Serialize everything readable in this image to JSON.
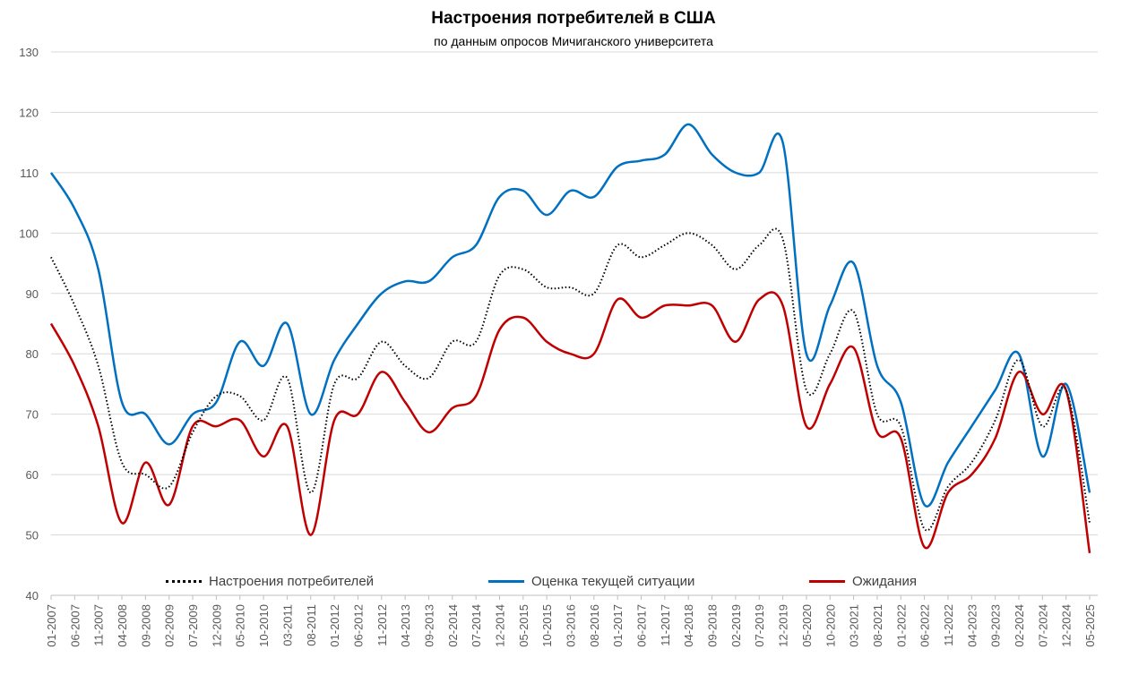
{
  "chart_data": {
    "type": "line",
    "title": "Настроения потребителей в США",
    "subtitle": "по данным опросов Мичиганского университета",
    "xlabel": "",
    "ylabel": "",
    "ylim": [
      40,
      130
    ],
    "yticks": [
      40,
      50,
      60,
      70,
      80,
      90,
      100,
      110,
      120,
      130
    ],
    "grid": true,
    "legend_position": "bottom-inside",
    "x": [
      "01-2007",
      "06-2007",
      "11-2007",
      "04-2008",
      "09-2008",
      "02-2009",
      "07-2009",
      "12-2009",
      "05-2010",
      "10-2010",
      "03-2011",
      "08-2011",
      "01-2012",
      "06-2012",
      "11-2012",
      "04-2013",
      "09-2013",
      "02-2014",
      "07-2014",
      "12-2014",
      "05-2015",
      "10-2015",
      "03-2016",
      "08-2016",
      "01-2017",
      "06-2017",
      "11-2017",
      "04-2018",
      "09-2018",
      "02-2019",
      "07-2019",
      "12-2019",
      "05-2020",
      "10-2020",
      "03-2021",
      "08-2021",
      "01-2022",
      "06-2022",
      "11-2022",
      "04-2023",
      "09-2023",
      "02-2024",
      "07-2024",
      "12-2024",
      "05-2025"
    ],
    "series": [
      {
        "name": "Настроения потребителей",
        "color": "#000000",
        "style": "dotted",
        "values": [
          96,
          88,
          78,
          62,
          60,
          58,
          67,
          73,
          73,
          69,
          76,
          57,
          75,
          76,
          82,
          78,
          76,
          82,
          82,
          93,
          94,
          91,
          91,
          90,
          98,
          96,
          98,
          100,
          98,
          94,
          98,
          99,
          74,
          80,
          87,
          70,
          68,
          51,
          58,
          62,
          69,
          79,
          68,
          74,
          52
        ]
      },
      {
        "name": "Оценка текущей ситуации",
        "color": "#0070C0",
        "style": "solid",
        "values": [
          110,
          104,
          94,
          72,
          70,
          65,
          70,
          72,
          82,
          78,
          85,
          70,
          79,
          85,
          90,
          92,
          92,
          96,
          98,
          106,
          107,
          103,
          107,
          106,
          111,
          112,
          113,
          118,
          113,
          110,
          110,
          115,
          80,
          88,
          95,
          78,
          72,
          55,
          62,
          68,
          74,
          80,
          63,
          75,
          57
        ]
      },
      {
        "name": "Ожидания",
        "color": "#C00000",
        "style": "solid",
        "values": [
          85,
          78,
          68,
          52,
          62,
          55,
          68,
          68,
          69,
          63,
          68,
          50,
          69,
          70,
          77,
          72,
          67,
          71,
          73,
          84,
          86,
          82,
          80,
          80,
          89,
          86,
          88,
          88,
          88,
          82,
          89,
          88,
          68,
          75,
          81,
          67,
          66,
          48,
          57,
          60,
          66,
          77,
          70,
          74,
          47
        ]
      }
    ]
  }
}
